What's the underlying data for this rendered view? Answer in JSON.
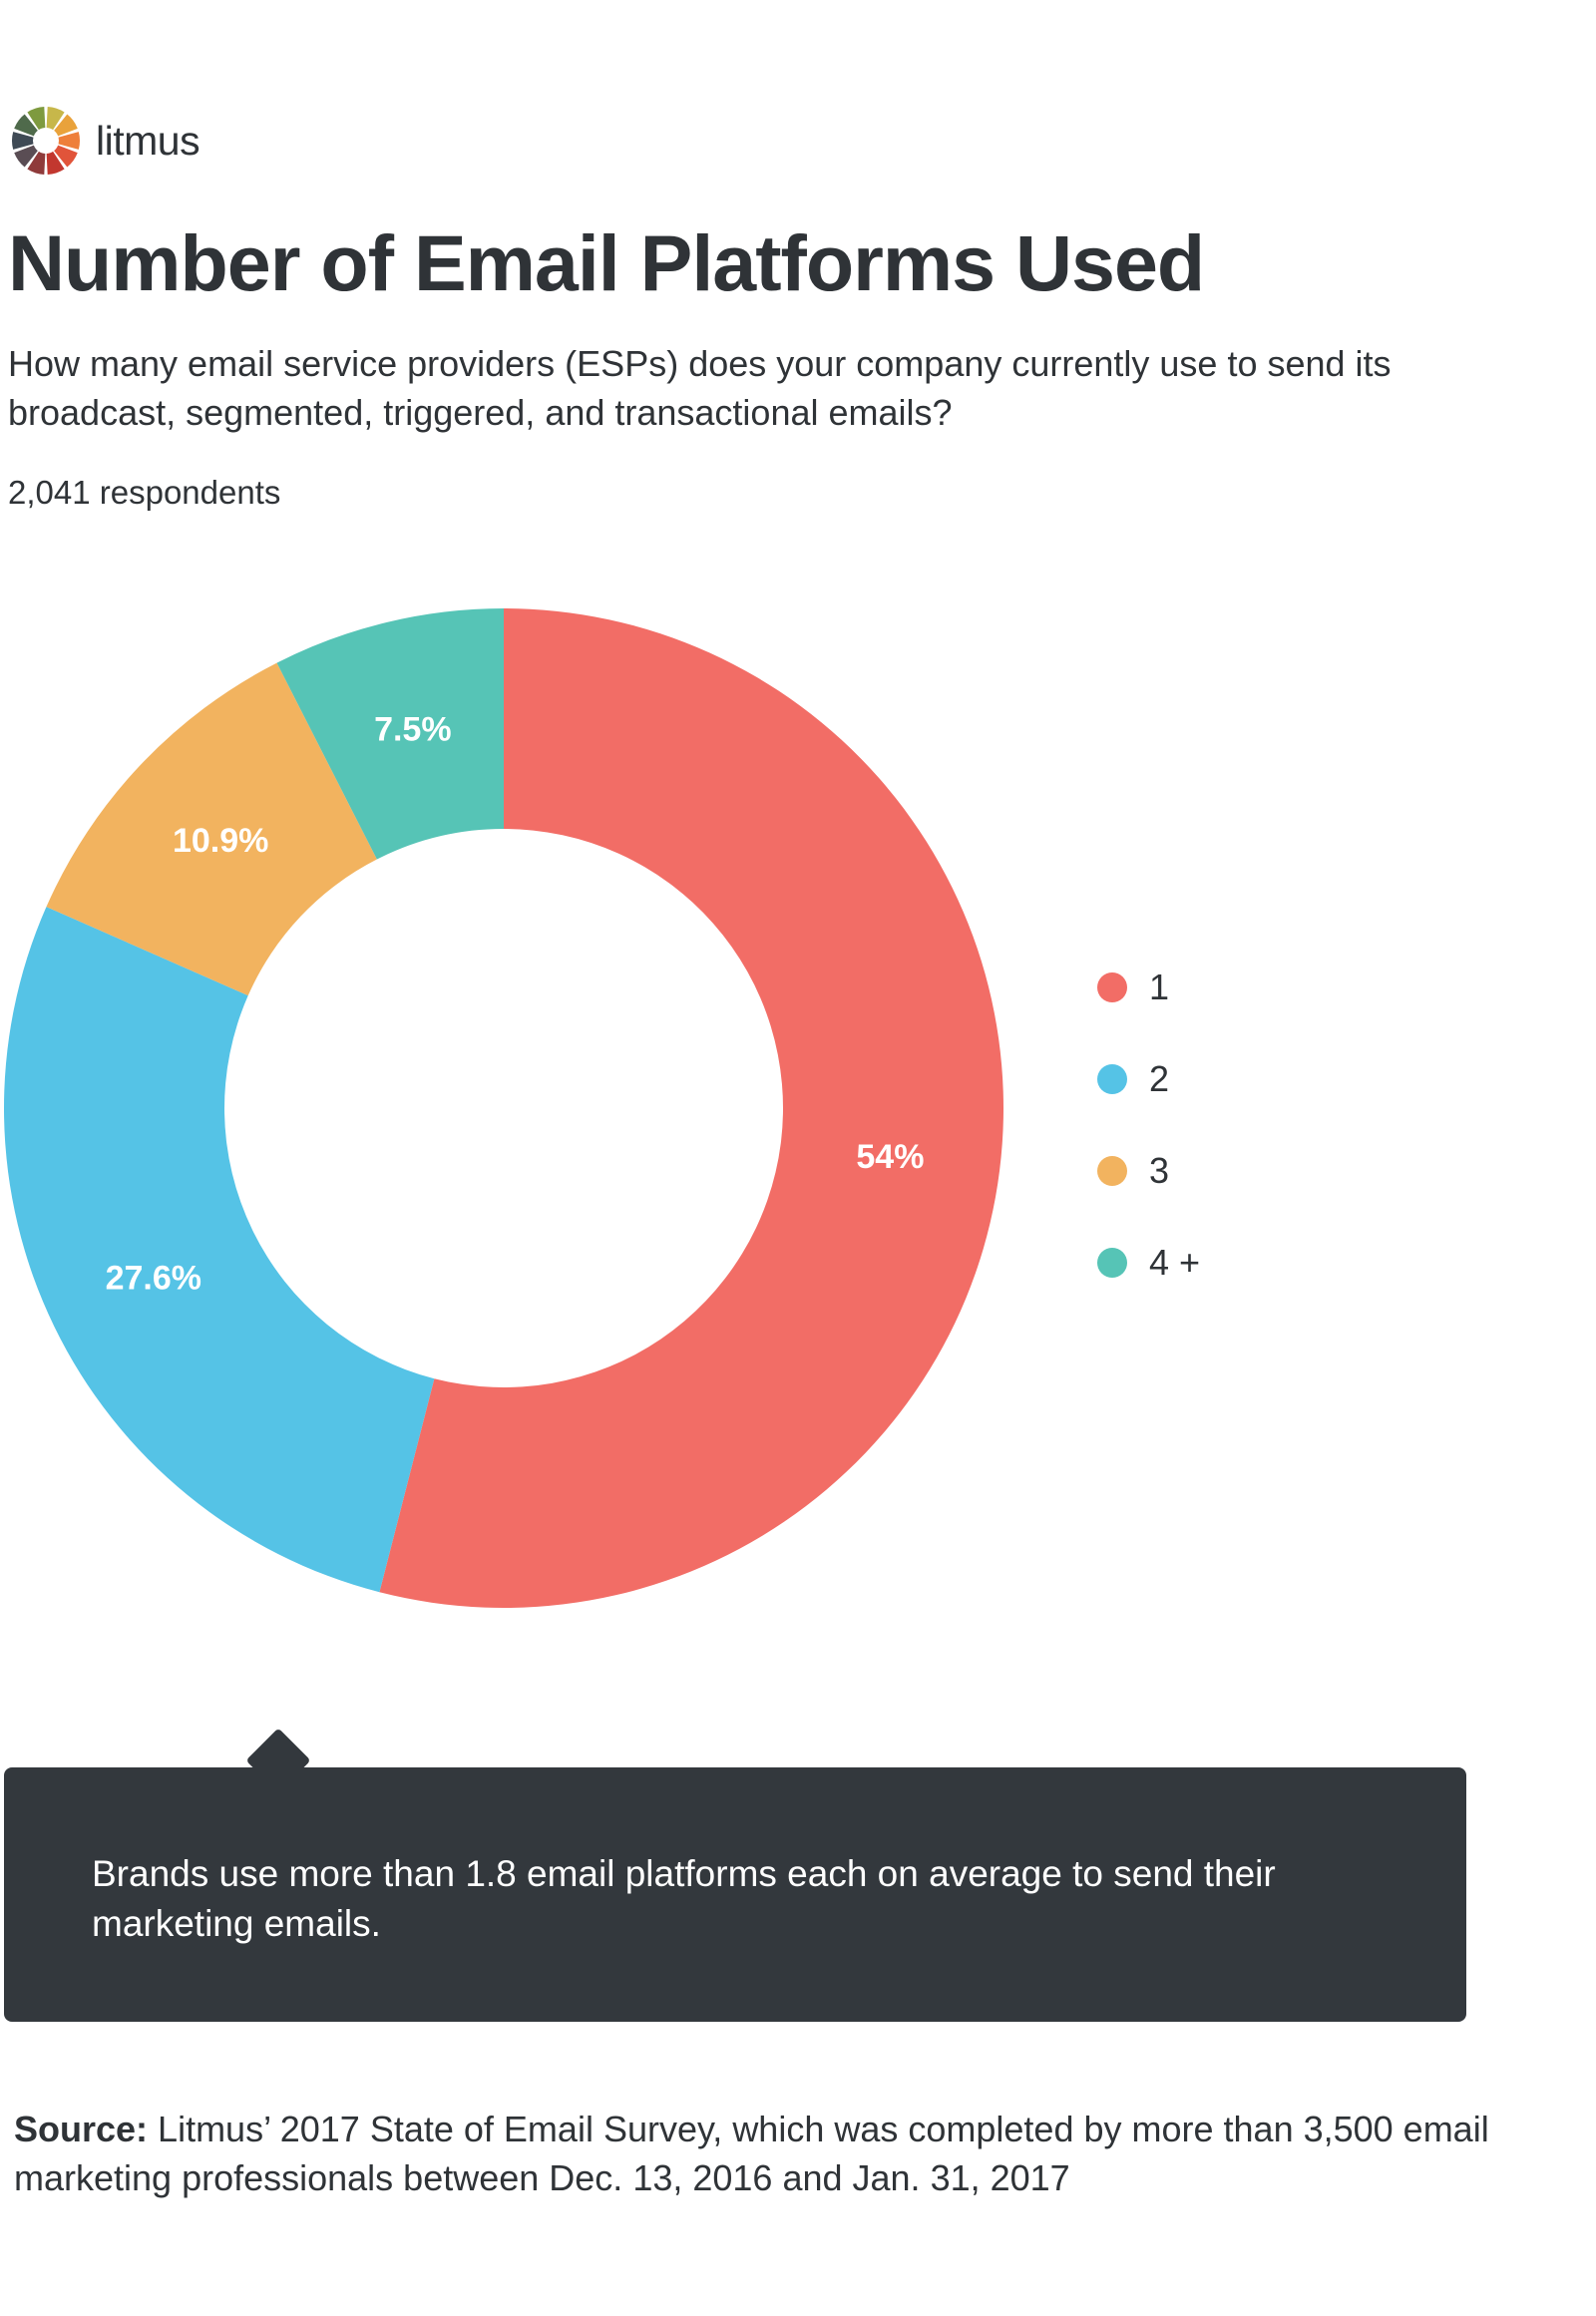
{
  "brand": {
    "name": "litmus"
  },
  "header": {
    "title": "Number of Email Platforms Used",
    "question": "How many email service providers (ESPs) does your company currently use to send its broadcast, segmented, triggered, and transactional emails?",
    "respondents": "2,041 respondents"
  },
  "chart_data": {
    "type": "pie",
    "donut": true,
    "categories": [
      "1",
      "2",
      "3",
      "4 +"
    ],
    "values": [
      54,
      27.6,
      10.9,
      7.5
    ],
    "value_labels": [
      "54%",
      "27.6%",
      "10.9%",
      "7.5%"
    ],
    "colors": [
      "#f26d66",
      "#55c3e6",
      "#f2b35f",
      "#56c4b6"
    ],
    "legend_position": "right"
  },
  "callout": {
    "text": "Brands use more than 1.8 email platforms each on average to send their marketing emails."
  },
  "footer": {
    "source_label": "Source:",
    "source_text": " Litmus’ 2017 State of Email Survey, which was completed by more than 3,500 email marketing professionals between Dec. 13, 2016 and Jan. 31, 2017"
  },
  "icons": {
    "logo": "litmus-color-wheel-icon"
  }
}
